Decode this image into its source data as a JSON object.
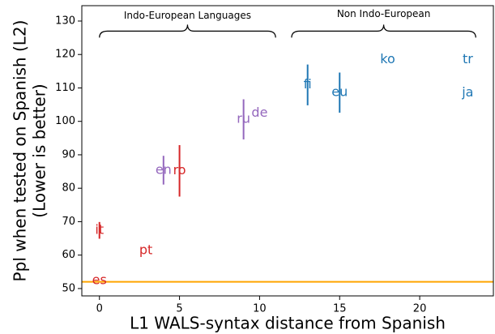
{
  "chart_data": {
    "type": "labeled_scatter",
    "xlabel": "L1 WALS-syntax distance from Spanish",
    "ylabel": [
      "Ppl when tested on Spanish (L2)",
      "(Lower is better)"
    ],
    "xlim": [
      -1.1,
      24.6
    ],
    "ylim": [
      47.8,
      134.6
    ],
    "xticks": [
      0,
      5,
      10,
      15,
      20
    ],
    "yticks": [
      50,
      60,
      70,
      80,
      90,
      100,
      110,
      120,
      130
    ],
    "reference_line": {
      "value": 52,
      "color": "#ffa500"
    },
    "annotations": [
      {
        "text": "Indo-European Languages",
        "from": 0,
        "to": 11,
        "y": 127
      },
      {
        "text": "Non Indo-European",
        "from": 12,
        "to": 23.5,
        "y": 127
      }
    ],
    "points": [
      {
        "label": "es",
        "x": 0,
        "y": 52.4,
        "error": null,
        "color": "#d62728"
      },
      {
        "label": "it",
        "x": 0,
        "y": 67.4,
        "error": 2.5,
        "color": "#d62728"
      },
      {
        "label": "pt",
        "x": 2.9,
        "y": 61.4,
        "error": null,
        "color": "#d62728"
      },
      {
        "label": "en",
        "x": 4,
        "y": 85.4,
        "error": 4.3,
        "color": "#9467bd"
      },
      {
        "label": "ro",
        "x": 5,
        "y": 85.2,
        "error": 7.7,
        "color": "#d62728"
      },
      {
        "label": "ru",
        "x": 9,
        "y": 100.6,
        "error": 6,
        "color": "#9467bd"
      },
      {
        "label": "de",
        "x": 10,
        "y": 102.5,
        "error": null,
        "color": "#9467bd"
      },
      {
        "label": "fi",
        "x": 13,
        "y": 110.9,
        "error": 6.1,
        "color": "#1f77b4"
      },
      {
        "label": "eu",
        "x": 15,
        "y": 108.6,
        "error": 6,
        "color": "#1f77b4"
      },
      {
        "label": "ko",
        "x": 18,
        "y": 118.5,
        "error": null,
        "color": "#1f77b4"
      },
      {
        "label": "tr",
        "x": 23,
        "y": 118.5,
        "error": null,
        "color": "#1f77b4"
      },
      {
        "label": "ja",
        "x": 23,
        "y": 108.5,
        "error": null,
        "color": "#1f77b4"
      }
    ]
  }
}
